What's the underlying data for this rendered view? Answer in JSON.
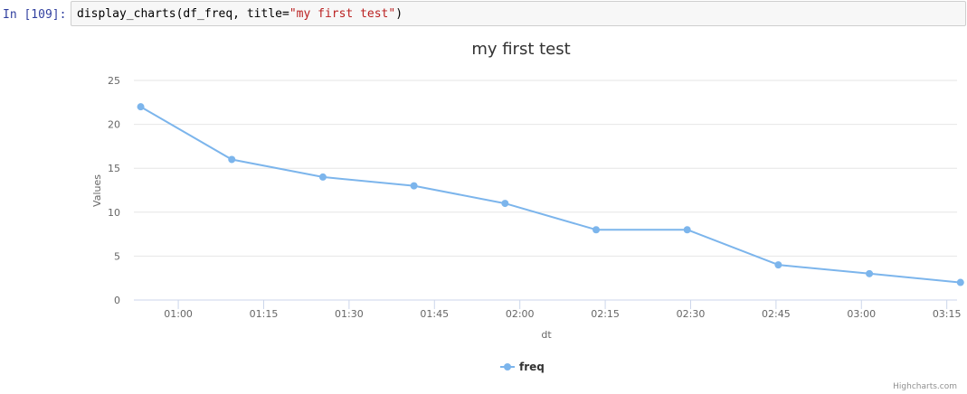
{
  "notebook": {
    "prompt": "In [109]:",
    "code_prefix": "display_charts(df_freq, title=",
    "code_string": "\"my first test\"",
    "code_suffix": ")"
  },
  "chart_data": {
    "type": "line",
    "title": "my first test",
    "xlabel": "dt",
    "ylabel": "Values",
    "ylim": [
      0,
      25
    ],
    "yticks": [
      0,
      5,
      10,
      15,
      20,
      25
    ],
    "xticks": [
      "01:00",
      "01:15",
      "01:30",
      "01:45",
      "02:00",
      "02:15",
      "02:30",
      "02:45",
      "03:00",
      "03:15"
    ],
    "xtick_minutes": [
      60,
      75,
      90,
      105,
      120,
      135,
      150,
      165,
      180,
      195
    ],
    "xlim_minutes": [
      52.2,
      196.8
    ],
    "series": [
      {
        "name": "freq",
        "color": "#7cb5ec",
        "x_minutes": [
          53.4,
          69.4,
          85.4,
          101.4,
          117.4,
          133.4,
          149.4,
          165.4,
          181.4,
          197.4
        ],
        "values": [
          22,
          16,
          14,
          13,
          11,
          8,
          8,
          4,
          3,
          2
        ]
      }
    ],
    "legend": "bottom-center",
    "credits": "Highcharts.com"
  }
}
